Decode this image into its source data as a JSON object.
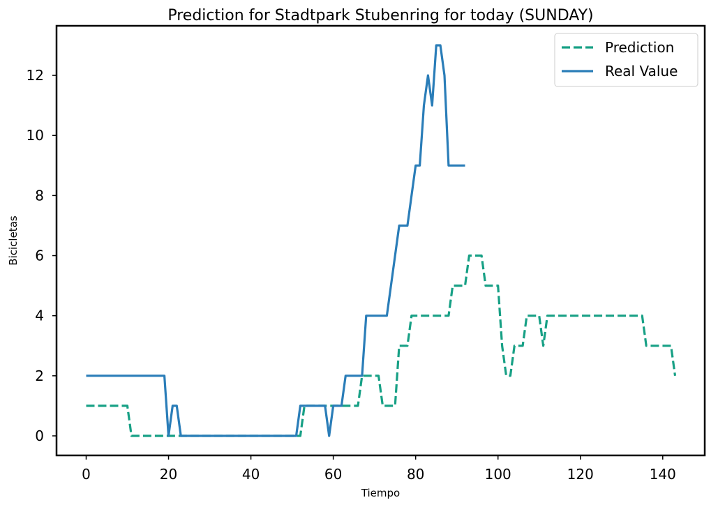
{
  "chart_data": {
    "type": "line",
    "title": "Prediction for Stadtpark Stubenring for today (SUNDAY)",
    "xlabel": "Tiempo",
    "ylabel": "Bicicletas",
    "xlim": [
      -7.2,
      150.2
    ],
    "ylim": [
      -0.65,
      13.65
    ],
    "xticks": [
      0,
      20,
      40,
      60,
      80,
      100,
      120,
      140
    ],
    "yticks": [
      0,
      2,
      4,
      6,
      8,
      10,
      12
    ],
    "grid": false,
    "legend_position": "top-right",
    "series": [
      {
        "name": "Prediction",
        "color": "#17a085",
        "style": "dashed",
        "points": [
          [
            0,
            1
          ],
          [
            10,
            1
          ],
          [
            11,
            0
          ],
          [
            20,
            0
          ],
          [
            21,
            0
          ],
          [
            51,
            0
          ],
          [
            52,
            0
          ],
          [
            53,
            1
          ],
          [
            66,
            1
          ],
          [
            67,
            2
          ],
          [
            71,
            2
          ],
          [
            72,
            1
          ],
          [
            75,
            1
          ],
          [
            76,
            3
          ],
          [
            78,
            3
          ],
          [
            79,
            4
          ],
          [
            88,
            4
          ],
          [
            89,
            5
          ],
          [
            92,
            5
          ],
          [
            93,
            6
          ],
          [
            96,
            6
          ],
          [
            97,
            5
          ],
          [
            100,
            5
          ],
          [
            101,
            3
          ],
          [
            102,
            2
          ],
          [
            103,
            2
          ],
          [
            104,
            3
          ],
          [
            106,
            3
          ],
          [
            107,
            4
          ],
          [
            110,
            4
          ],
          [
            111,
            3
          ],
          [
            112,
            4
          ],
          [
            134,
            4
          ],
          [
            135,
            4
          ],
          [
            136,
            3
          ],
          [
            142,
            3
          ],
          [
            143,
            2
          ]
        ]
      },
      {
        "name": "Real Value",
        "color": "#2a7db8",
        "style": "solid",
        "points": [
          [
            0,
            2
          ],
          [
            19,
            2
          ],
          [
            20,
            0
          ],
          [
            21,
            1
          ],
          [
            22,
            1
          ],
          [
            23,
            0
          ],
          [
            51,
            0
          ],
          [
            52,
            1
          ],
          [
            58,
            1
          ],
          [
            59,
            0
          ],
          [
            60,
            1
          ],
          [
            62,
            1
          ],
          [
            63,
            2
          ],
          [
            67,
            2
          ],
          [
            68,
            4
          ],
          [
            73,
            4
          ],
          [
            76,
            7
          ],
          [
            78,
            7
          ],
          [
            80,
            9
          ],
          [
            81,
            9
          ],
          [
            82,
            11
          ],
          [
            83,
            12
          ],
          [
            84,
            11
          ],
          [
            85,
            13
          ],
          [
            86,
            13
          ],
          [
            87,
            12
          ],
          [
            88,
            9
          ],
          [
            92,
            9
          ]
        ]
      }
    ]
  }
}
